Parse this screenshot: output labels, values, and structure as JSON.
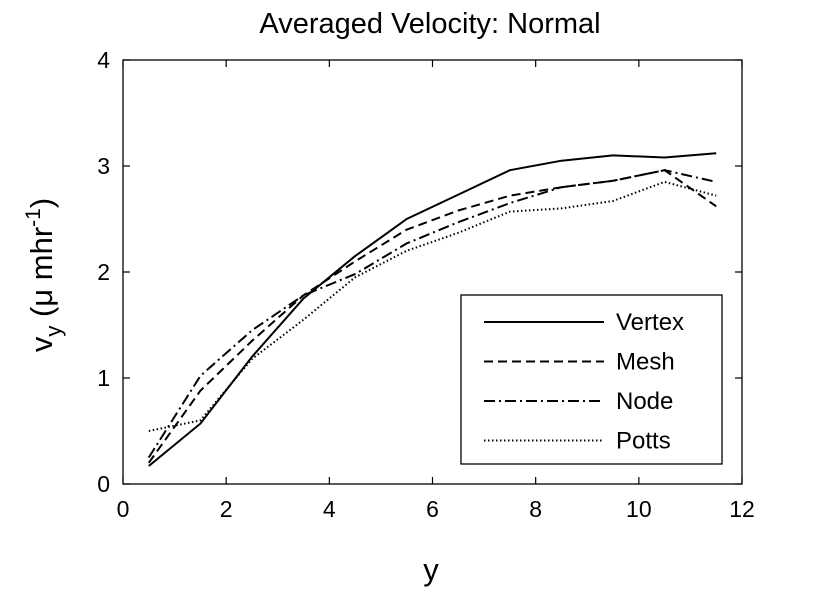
{
  "chart_data": {
    "type": "line",
    "title": "Averaged Velocity: Normal",
    "xlabel": "y",
    "ylabel": {
      "base": "v",
      "sub": "y",
      "open": " (",
      "mu": "μ",
      "unit": " mhr",
      "sup": "-1",
      "close": ")"
    },
    "xlim": [
      0,
      12
    ],
    "ylim": [
      0,
      4
    ],
    "xticks": [
      0,
      2,
      4,
      6,
      8,
      10,
      12
    ],
    "yticks": [
      0,
      1,
      2,
      3,
      4
    ],
    "grid": false,
    "legend_position": "bottom-right",
    "x": [
      0.5,
      1.5,
      2.5,
      3.5,
      4.5,
      5.5,
      6.5,
      7.5,
      8.5,
      9.5,
      10.5,
      11.5
    ],
    "series": [
      {
        "name": "Vertex",
        "style": "solid",
        "values": [
          0.17,
          0.57,
          1.2,
          1.75,
          2.15,
          2.5,
          2.73,
          2.96,
          3.05,
          3.1,
          3.08,
          3.12
        ]
      },
      {
        "name": "Mesh",
        "style": "dashed",
        "values": [
          0.2,
          0.88,
          1.35,
          1.78,
          2.1,
          2.4,
          2.58,
          2.72,
          2.8,
          2.86,
          2.96,
          2.62
        ]
      },
      {
        "name": "Node",
        "style": "dashdot",
        "values": [
          0.25,
          1.02,
          1.45,
          1.78,
          1.98,
          2.27,
          2.47,
          2.65,
          2.8,
          2.86,
          2.96,
          2.85
        ]
      },
      {
        "name": "Potts",
        "style": "dotted",
        "values": [
          0.5,
          0.6,
          1.18,
          1.55,
          1.95,
          2.2,
          2.37,
          2.57,
          2.6,
          2.67,
          2.85,
          2.72
        ]
      }
    ]
  }
}
